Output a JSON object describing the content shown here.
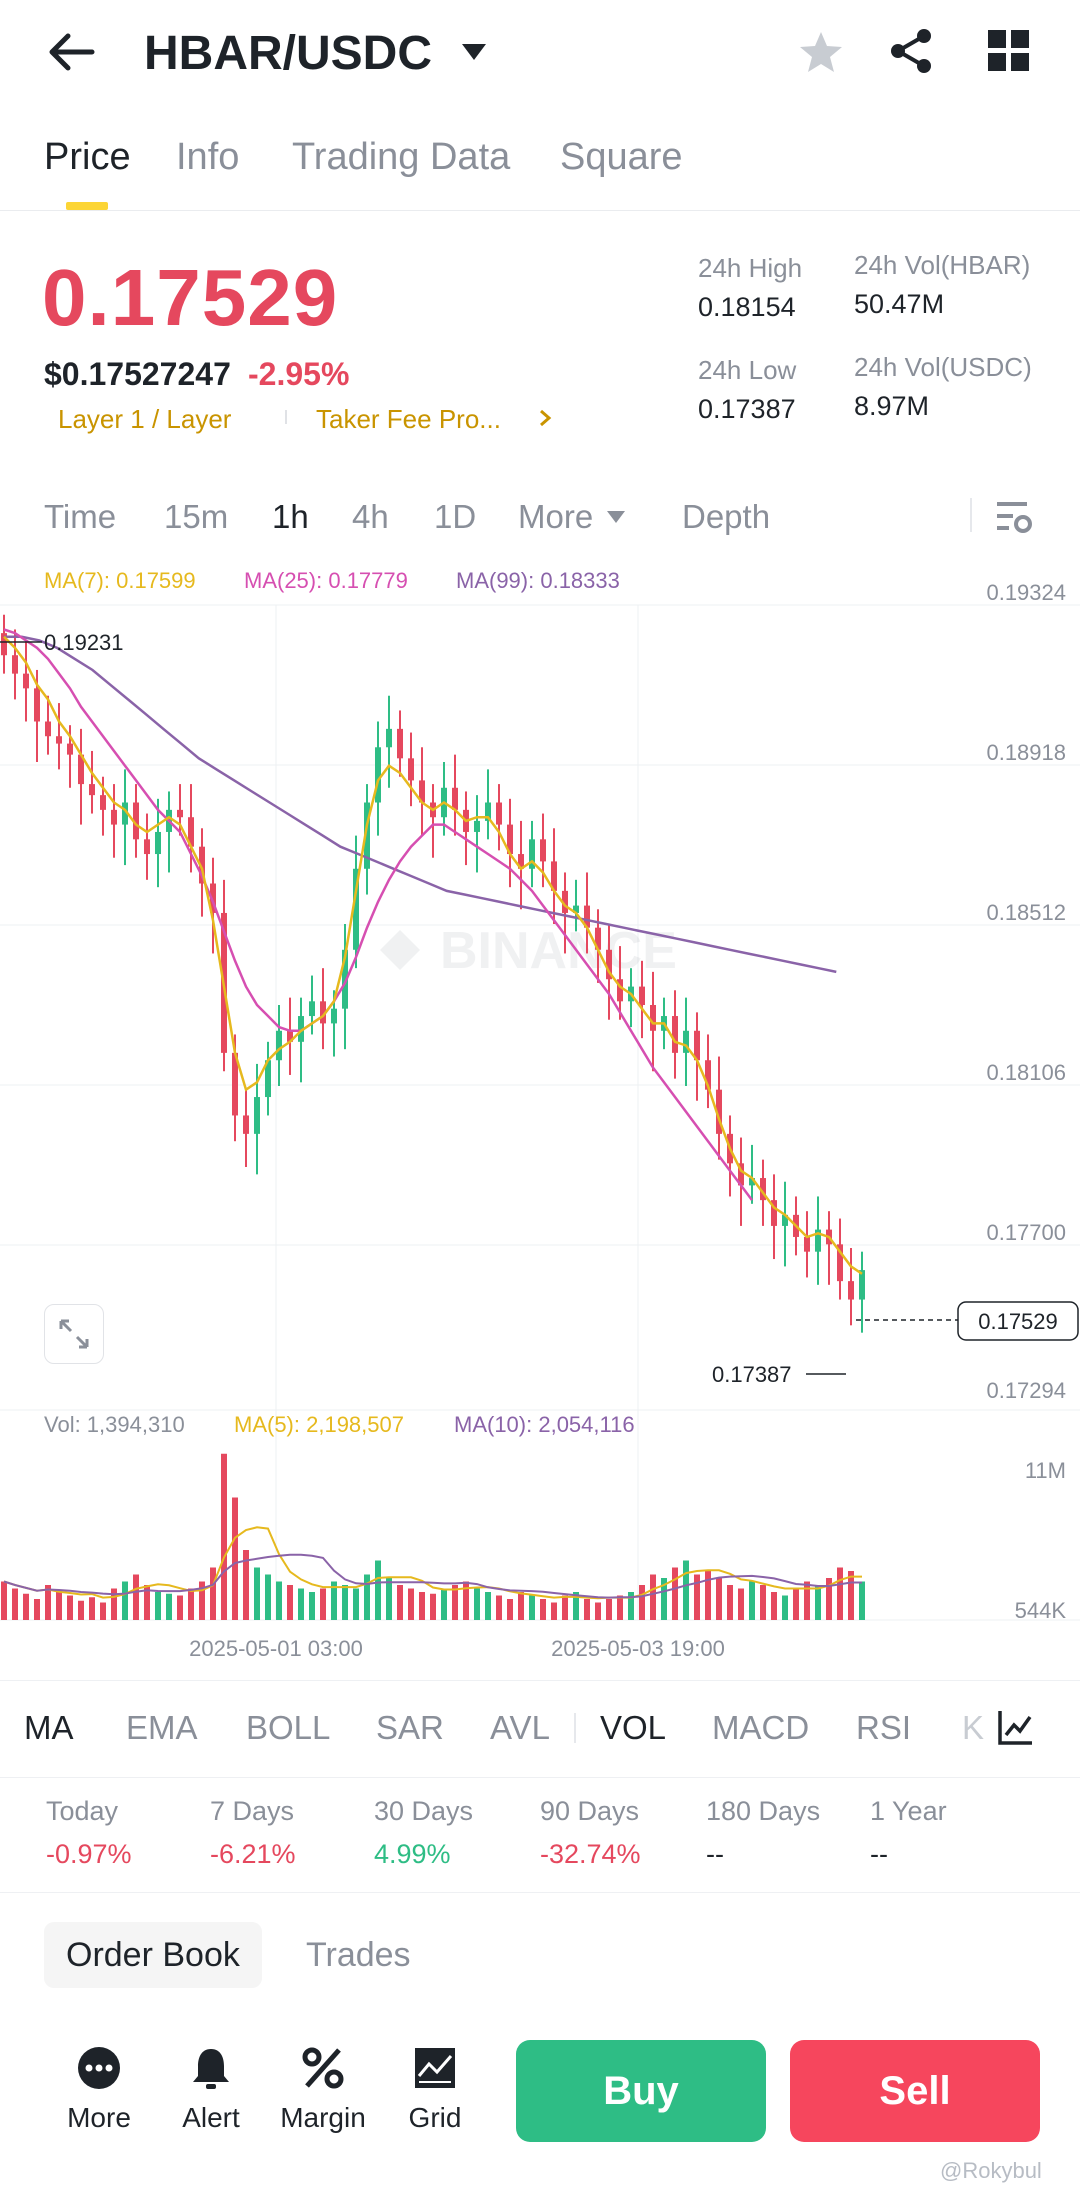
{
  "header": {
    "pair": "HBAR/USDC"
  },
  "tabs": [
    "Price",
    "Info",
    "Trading Data",
    "Square"
  ],
  "price": {
    "last": "0.17529",
    "usd": "$0.17527247",
    "change": "-2.95%",
    "tag1": "Layer 1 / Layer",
    "tag2": "Taker Fee Pro...",
    "high_label": "24h High",
    "high": "0.18154",
    "low_label": "24h Low",
    "low": "0.17387",
    "vol_base_label": "24h Vol(HBAR)",
    "vol_base": "50.47M",
    "vol_quote_label": "24h Vol(USDC)",
    "vol_quote": "8.97M"
  },
  "timeframes": [
    "Time",
    "15m",
    "1h",
    "4h",
    "1D",
    "More",
    "Depth"
  ],
  "chart_legend": {
    "ma7": "MA(7): 0.17599",
    "ma25": "MA(25): 0.17779",
    "ma99": "MA(99): 0.18333",
    "vol": "Vol: 1,394,310",
    "vma5": "MA(5): 2,198,507",
    "vma10": "MA(10): 2,054,116"
  },
  "chart_data": {
    "type": "candlestick",
    "price_axis": [
      "0.19324",
      "0.18918",
      "0.18512",
      "0.18106",
      "0.17700",
      "0.17294"
    ],
    "high_marker": "0.19231",
    "low_marker": "0.17387",
    "current_price": "0.17529",
    "volume_axis": [
      "11M",
      "544K"
    ],
    "time_axis": [
      "2025-05-01 03:00",
      "2025-05-03 19:00"
    ],
    "watermark": "BINANCE",
    "ylim": [
      0.1715,
      0.1935
    ],
    "close_path": [
      0.192,
      0.1915,
      0.1911,
      0.1902,
      0.1898,
      0.1896,
      0.1893,
      0.1885,
      0.1882,
      0.1878,
      0.1874,
      0.188,
      0.187,
      0.1866,
      0.1872,
      0.1878,
      0.1876,
      0.1868,
      0.1858,
      0.185,
      0.1812,
      0.1795,
      0.179,
      0.18,
      0.181,
      0.1818,
      0.1815,
      0.1822,
      0.1826,
      0.182,
      0.1824,
      0.184,
      0.1862,
      0.188,
      0.1895,
      0.19,
      0.1892,
      0.1886,
      0.188,
      0.1876,
      0.1884,
      0.1878,
      0.1872,
      0.1875,
      0.188,
      0.1874,
      0.1866,
      0.1862,
      0.187,
      0.1864,
      0.1856,
      0.185,
      0.1852,
      0.1846,
      0.184,
      0.1832,
      0.1826,
      0.183,
      0.1825,
      0.1818,
      0.1822,
      0.1812,
      0.1818,
      0.181,
      0.1802,
      0.179,
      0.1782,
      0.1776,
      0.1778,
      0.1772,
      0.1765,
      0.1768,
      0.1762,
      0.1758,
      0.1764,
      0.176,
      0.175,
      0.1745,
      0.1753
    ],
    "ma7": [
      0.1925,
      0.1922,
      0.1918,
      0.1912,
      0.1908,
      0.1902,
      0.1898,
      0.1893,
      0.1888,
      0.1884,
      0.188,
      0.1878,
      0.1874,
      0.1872,
      0.1874,
      0.1876,
      0.1874,
      0.1868,
      0.1862,
      0.1848,
      0.183,
      0.1812,
      0.1802,
      0.1804,
      0.181,
      0.1813,
      0.1815,
      0.1818,
      0.182,
      0.1822,
      0.1826,
      0.1838,
      0.1856,
      0.1874,
      0.1886,
      0.189,
      0.1888,
      0.1884,
      0.188,
      0.1878,
      0.188,
      0.1878,
      0.1875,
      0.1876,
      0.1876,
      0.1872,
      0.1866,
      0.1862,
      0.1864,
      0.1861,
      0.1856,
      0.1852,
      0.185,
      0.1846,
      0.184,
      0.1834,
      0.183,
      0.1828,
      0.1824,
      0.182,
      0.182,
      0.1815,
      0.1814,
      0.181,
      0.1803,
      0.1794,
      0.1786,
      0.178,
      0.1778,
      0.1774,
      0.177,
      0.1768,
      0.1765,
      0.1762,
      0.1763,
      0.1762,
      0.1758,
      0.1754,
      0.1752
    ],
    "ma25": [
      0.1927,
      0.1926,
      0.1924,
      0.1922,
      0.1919,
      0.1915,
      0.1911,
      0.1906,
      0.1902,
      0.1898,
      0.1894,
      0.189,
      0.1886,
      0.1882,
      0.1878,
      0.1875,
      0.1872,
      0.1866,
      0.186,
      0.1853,
      0.1845,
      0.1837,
      0.183,
      0.1825,
      0.1822,
      0.1819,
      0.1818,
      0.1818,
      0.182,
      0.1822,
      0.1826,
      0.1831,
      0.1838,
      0.1846,
      0.1853,
      0.1859,
      0.1864,
      0.1868,
      0.1871,
      0.1874,
      0.1874,
      0.1872,
      0.187,
      0.1868,
      0.1866,
      0.1864,
      0.1862,
      0.1859,
      0.1856,
      0.1852,
      0.1848,
      0.1844,
      0.184,
      0.1836,
      0.1832,
      0.1828,
      0.1823,
      0.1818,
      0.1813,
      0.1808,
      0.1804,
      0.18,
      0.1796,
      0.1792,
      0.1788,
      0.1784,
      0.178,
      0.1776,
      0.1772
    ],
    "ma99": [
      0.1925,
      0.1925,
      0.1924,
      0.1922,
      0.1919,
      0.1916,
      0.1912,
      0.1908,
      0.1904,
      0.19,
      0.1896,
      0.1892,
      0.1889,
      0.1886,
      0.1883,
      0.188,
      0.1877,
      0.1874,
      0.1871,
      0.1868,
      0.1866,
      0.1864,
      0.1862,
      0.186,
      0.1858,
      0.1856,
      0.1855,
      0.1854,
      0.1853,
      0.1852,
      0.1851,
      0.185,
      0.1849,
      0.1848,
      0.1847,
      0.1846,
      0.1845,
      0.1844,
      0.1843,
      0.1842,
      0.1841,
      0.184,
      0.1839,
      0.1838,
      0.1837,
      0.1836,
      0.1835,
      0.1834
    ],
    "volume_heights": [
      0.22,
      0.18,
      0.15,
      0.12,
      0.2,
      0.16,
      0.14,
      0.11,
      0.13,
      0.1,
      0.18,
      0.22,
      0.26,
      0.2,
      0.16,
      0.15,
      0.14,
      0.18,
      0.22,
      0.3,
      0.95,
      0.7,
      0.4,
      0.3,
      0.26,
      0.22,
      0.2,
      0.18,
      0.16,
      0.18,
      0.22,
      0.2,
      0.18,
      0.26,
      0.34,
      0.24,
      0.2,
      0.18,
      0.16,
      0.15,
      0.18,
      0.2,
      0.22,
      0.18,
      0.16,
      0.14,
      0.12,
      0.16,
      0.14,
      0.12,
      0.1,
      0.14,
      0.16,
      0.12,
      0.1,
      0.12,
      0.14,
      0.16,
      0.2,
      0.26,
      0.24,
      0.3,
      0.34,
      0.26,
      0.28,
      0.24,
      0.2,
      0.18,
      0.22,
      0.2,
      0.16,
      0.14,
      0.18,
      0.22,
      0.2,
      0.24,
      0.3,
      0.28,
      0.22
    ]
  },
  "indicators": [
    "MA",
    "EMA",
    "BOLL",
    "SAR",
    "AVL",
    "VOL",
    "MACD",
    "RSI",
    "K"
  ],
  "performance": [
    {
      "label": "Today",
      "value": "-0.97%",
      "dir": "down"
    },
    {
      "label": "7 Days",
      "value": "-6.21%",
      "dir": "down"
    },
    {
      "label": "30 Days",
      "value": "4.99%",
      "dir": "up"
    },
    {
      "label": "90 Days",
      "value": "-32.74%",
      "dir": "down"
    },
    {
      "label": "180 Days",
      "value": "--",
      "dir": "none"
    },
    {
      "label": "1 Year",
      "value": "--",
      "dir": "none"
    }
  ],
  "book_tabs": [
    "Order Book",
    "Trades"
  ],
  "bottom": {
    "more": "More",
    "alert": "Alert",
    "margin": "Margin",
    "grid": "Grid",
    "buy": "Buy",
    "sell": "Sell"
  },
  "watermark_footer": "@Rokybul",
  "colors": {
    "up": "#2ebd85",
    "down": "#e5485e",
    "accent": "#fcd535",
    "ma7": "#e6b91e",
    "ma25": "#d64fb1",
    "ma99": "#8a63a8"
  }
}
